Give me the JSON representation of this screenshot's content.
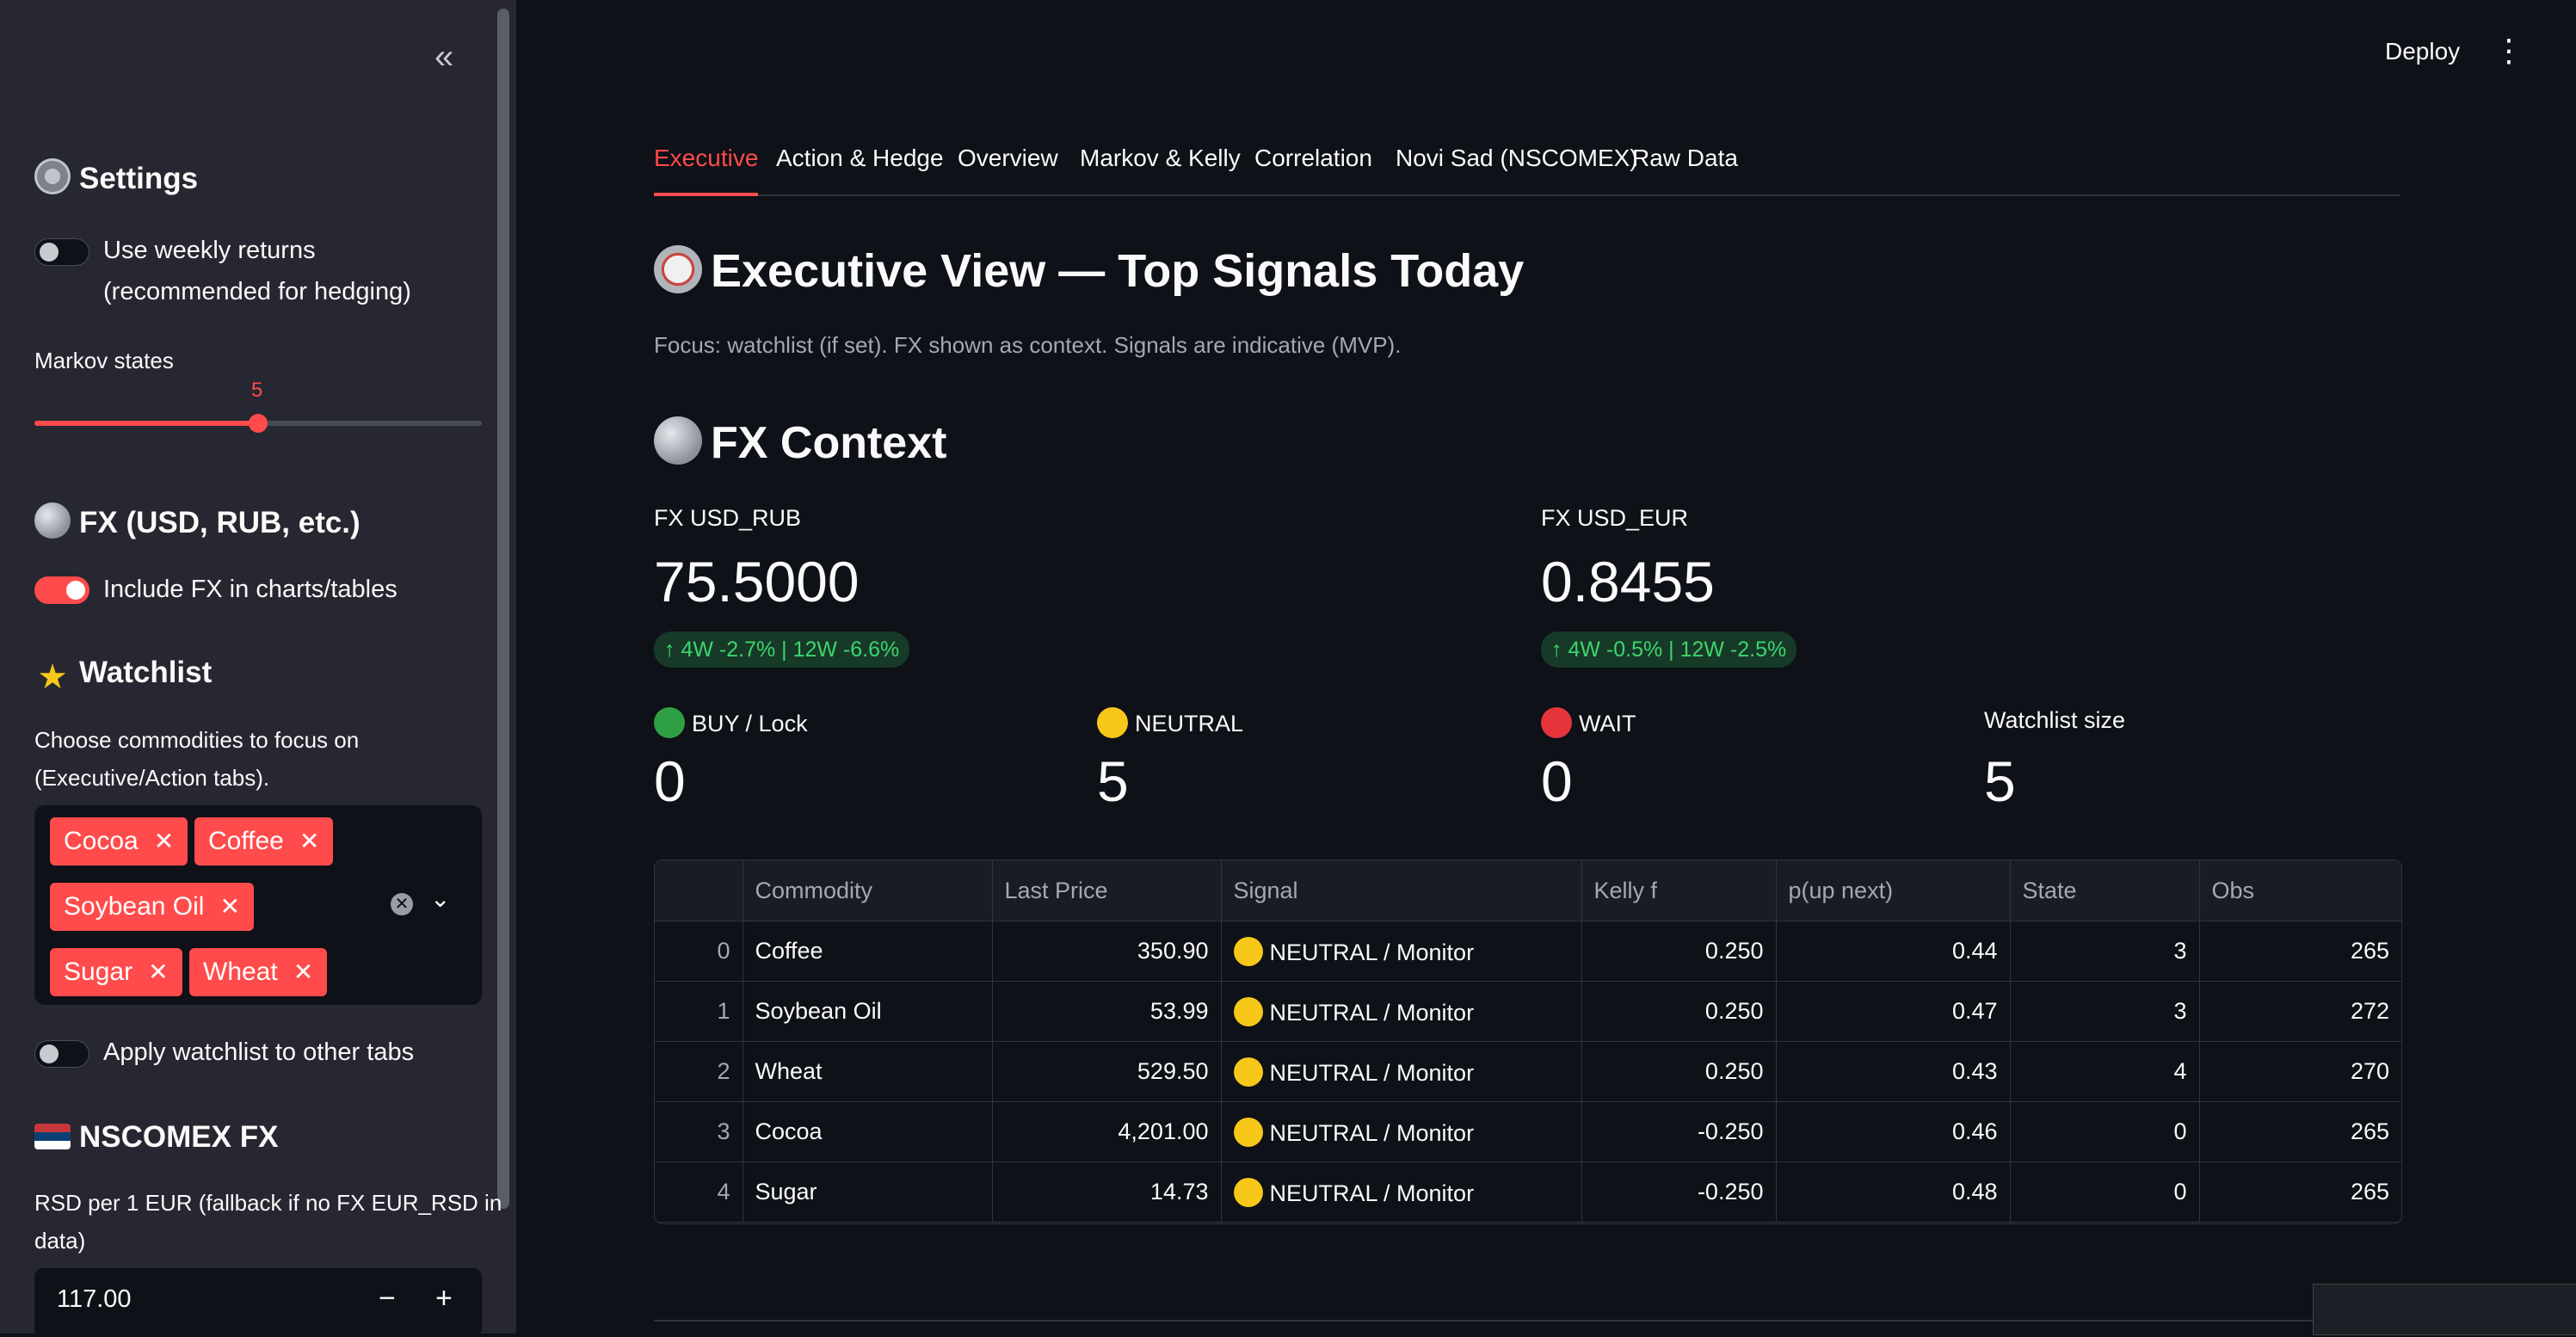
{
  "sidebar": {
    "collapse_glyph": "«",
    "settings_title": "Settings",
    "weekly_toggle_label_1": "Use weekly returns",
    "weekly_toggle_label_2": "(recommended for hedging)",
    "markov_label": "Markov states",
    "markov_value": "5",
    "markov_fraction": 0.5,
    "fx_title": "FX (USD, RUB, etc.)",
    "include_fx_label": "Include FX in charts/tables",
    "watchlist_title": "Watchlist",
    "watchlist_help_1": "Choose commodities to focus on",
    "watchlist_help_2": "(Executive/Action tabs).",
    "watchlist_items": [
      "Cocoa",
      "Coffee",
      "Soybean Oil",
      "Sugar",
      "Wheat"
    ],
    "apply_watchlist_label": "Apply watchlist to other tabs",
    "nscomex_title": "NSCOMEX FX",
    "rsd_label_1": "RSD per 1 EUR (fallback if no FX EUR_RSD in",
    "rsd_label_2": "data)",
    "rsd_value": "117.00"
  },
  "header": {
    "deploy_label": "Deploy",
    "menu_glyph": "⋮"
  },
  "tabs": [
    "Executive",
    "Action & Hedge",
    "Overview",
    "Markov & Kelly",
    "Correlation",
    "Novi Sad (NSCOMEX)",
    "Raw Data"
  ],
  "main": {
    "title": "Executive View — Top Signals Today",
    "caption": "Focus: watchlist (if set). FX shown as context. Signals are indicative (MVP).",
    "fx_context_title": "FX Context",
    "fx": [
      {
        "label": "FX USD_RUB",
        "value": "75.5000",
        "delta": "↑ 4W -2.7% | 12W -6.6%"
      },
      {
        "label": "FX USD_EUR",
        "value": "0.8455",
        "delta": "↑ 4W -0.5% | 12W -2.5%"
      }
    ],
    "signals": [
      {
        "label": "BUY / Lock",
        "value": "0",
        "dot": "#2ea043"
      },
      {
        "label": "NEUTRAL",
        "value": "5",
        "dot": "#f7c719"
      },
      {
        "label": "WAIT",
        "value": "0",
        "dot": "#e5343a"
      },
      {
        "label": "Watchlist size",
        "value": "5",
        "dot": ""
      }
    ]
  },
  "table": {
    "columns": [
      "",
      "Commodity",
      "Last Price",
      "Signal",
      "Kelly f",
      "p(up next)",
      "State",
      "Obs"
    ],
    "rows": [
      [
        "0",
        "Coffee",
        "350.90",
        "NEUTRAL / Monitor",
        "0.250",
        "0.44",
        "3",
        "265"
      ],
      [
        "1",
        "Soybean Oil",
        "53.99",
        "NEUTRAL / Monitor",
        "0.250",
        "0.47",
        "3",
        "272"
      ],
      [
        "2",
        "Wheat",
        "529.50",
        "NEUTRAL / Monitor",
        "0.250",
        "0.43",
        "4",
        "270"
      ],
      [
        "3",
        "Cocoa",
        "4,201.00",
        "NEUTRAL / Monitor",
        "-0.250",
        "0.46",
        "0",
        "265"
      ],
      [
        "4",
        "Sugar",
        "14.73",
        "NEUTRAL / Monitor",
        "-0.250",
        "0.48",
        "0",
        "265"
      ]
    ]
  },
  "colors": {
    "accent": "#ff4b4b",
    "bg": "#0e1117",
    "sidebar": "#262730",
    "delta_green": "#3dd56d"
  }
}
